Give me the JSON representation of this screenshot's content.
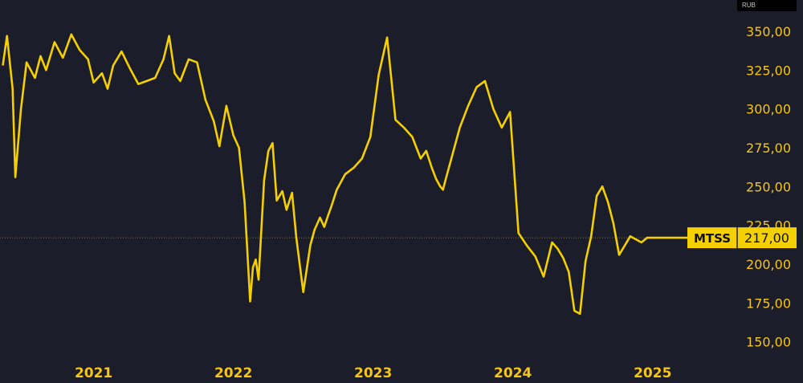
{
  "currency": "RUB",
  "chart_data": {
    "type": "line",
    "series": [
      {
        "name": "MTSS",
        "x": [
          2020.35,
          2020.38,
          2020.42,
          2020.44,
          2020.48,
          2020.52,
          2020.58,
          2020.62,
          2020.66,
          2020.72,
          2020.78,
          2020.84,
          2020.9,
          2020.96,
          2021.0,
          2021.06,
          2021.1,
          2021.14,
          2021.2,
          2021.26,
          2021.32,
          2021.38,
          2021.44,
          2021.5,
          2021.54,
          2021.58,
          2021.62,
          2021.68,
          2021.74,
          2021.8,
          2021.86,
          2021.9,
          2021.95,
          2022.0,
          2022.04,
          2022.08,
          2022.12,
          2022.14,
          2022.16,
          2022.18,
          2022.22,
          2022.25,
          2022.28,
          2022.31,
          2022.35,
          2022.38,
          2022.42,
          2022.45,
          2022.5,
          2022.55,
          2022.58,
          2022.62,
          2022.65,
          2022.68,
          2022.7,
          2022.74,
          2022.8,
          2022.86,
          2022.92,
          2022.98,
          2023.04,
          2023.1,
          2023.16,
          2023.22,
          2023.28,
          2023.34,
          2023.38,
          2023.42,
          2023.45,
          2023.48,
          2023.5,
          2023.52,
          2023.56,
          2023.62,
          2023.68,
          2023.74,
          2023.8,
          2023.86,
          2023.92,
          2023.98,
          2024.04,
          2024.1,
          2024.16,
          2024.22,
          2024.28,
          2024.32,
          2024.36,
          2024.4,
          2024.44,
          2024.48,
          2024.52,
          2024.56,
          2024.6,
          2024.64,
          2024.68,
          2024.72,
          2024.76,
          2024.8,
          2024.84,
          2024.88,
          2024.92,
          2024.96,
          2025.0,
          2025.04,
          2025.08,
          2025.12,
          2025.16,
          2025.2,
          2025.24,
          2025.3,
          2025.36,
          2025.42
        ],
        "y": [
          328,
          347,
          313,
          256,
          300,
          330,
          320,
          334,
          325,
          343,
          333,
          348,
          338,
          332,
          317,
          323,
          313,
          328,
          337,
          326,
          316,
          318,
          320,
          332,
          347,
          323,
          318,
          332,
          330,
          306,
          292,
          276,
          302,
          283,
          275,
          240,
          176,
          198,
          203,
          190,
          254,
          273,
          278,
          241,
          247,
          235,
          246,
          217,
          182,
          212,
          222,
          230,
          224,
          232,
          237,
          248,
          258,
          262,
          268,
          282,
          322,
          346,
          293,
          288,
          282,
          268,
          273,
          262,
          255,
          250,
          248,
          255,
          268,
          288,
          302,
          314,
          318,
          300,
          288,
          298,
          220,
          212,
          205,
          192,
          214,
          210,
          204,
          195,
          170,
          168,
          202,
          218,
          244,
          250,
          240,
          226,
          206,
          212,
          218,
          216,
          214,
          217,
          217,
          217,
          217,
          217,
          217,
          217,
          217,
          217,
          217,
          217
        ],
        "last_value_label": "217,00"
      }
    ],
    "x_ticks": [
      "2021",
      "2022",
      "2023",
      "2024",
      "2025"
    ],
    "x_tick_values": [
      2021,
      2022,
      2023,
      2024,
      2025
    ],
    "y_ticks": [
      "150,00",
      "175,00",
      "200,00",
      "225,00",
      "250,00",
      "275,00",
      "300,00",
      "325,00",
      "350,00"
    ],
    "y_tick_values": [
      150,
      175,
      200,
      225,
      250,
      275,
      300,
      325,
      350
    ],
    "ylim": [
      140,
      365
    ],
    "xlim": [
      2020.33,
      2025.53
    ],
    "last_value": 217,
    "grid": false,
    "colors": {
      "background": "#1c1d2b",
      "line": "#f5d000",
      "label_bg": "#f5d000",
      "label_text": "#111111",
      "axis_text": "#f5c518",
      "last_value_line": "#8a7a3a"
    }
  }
}
